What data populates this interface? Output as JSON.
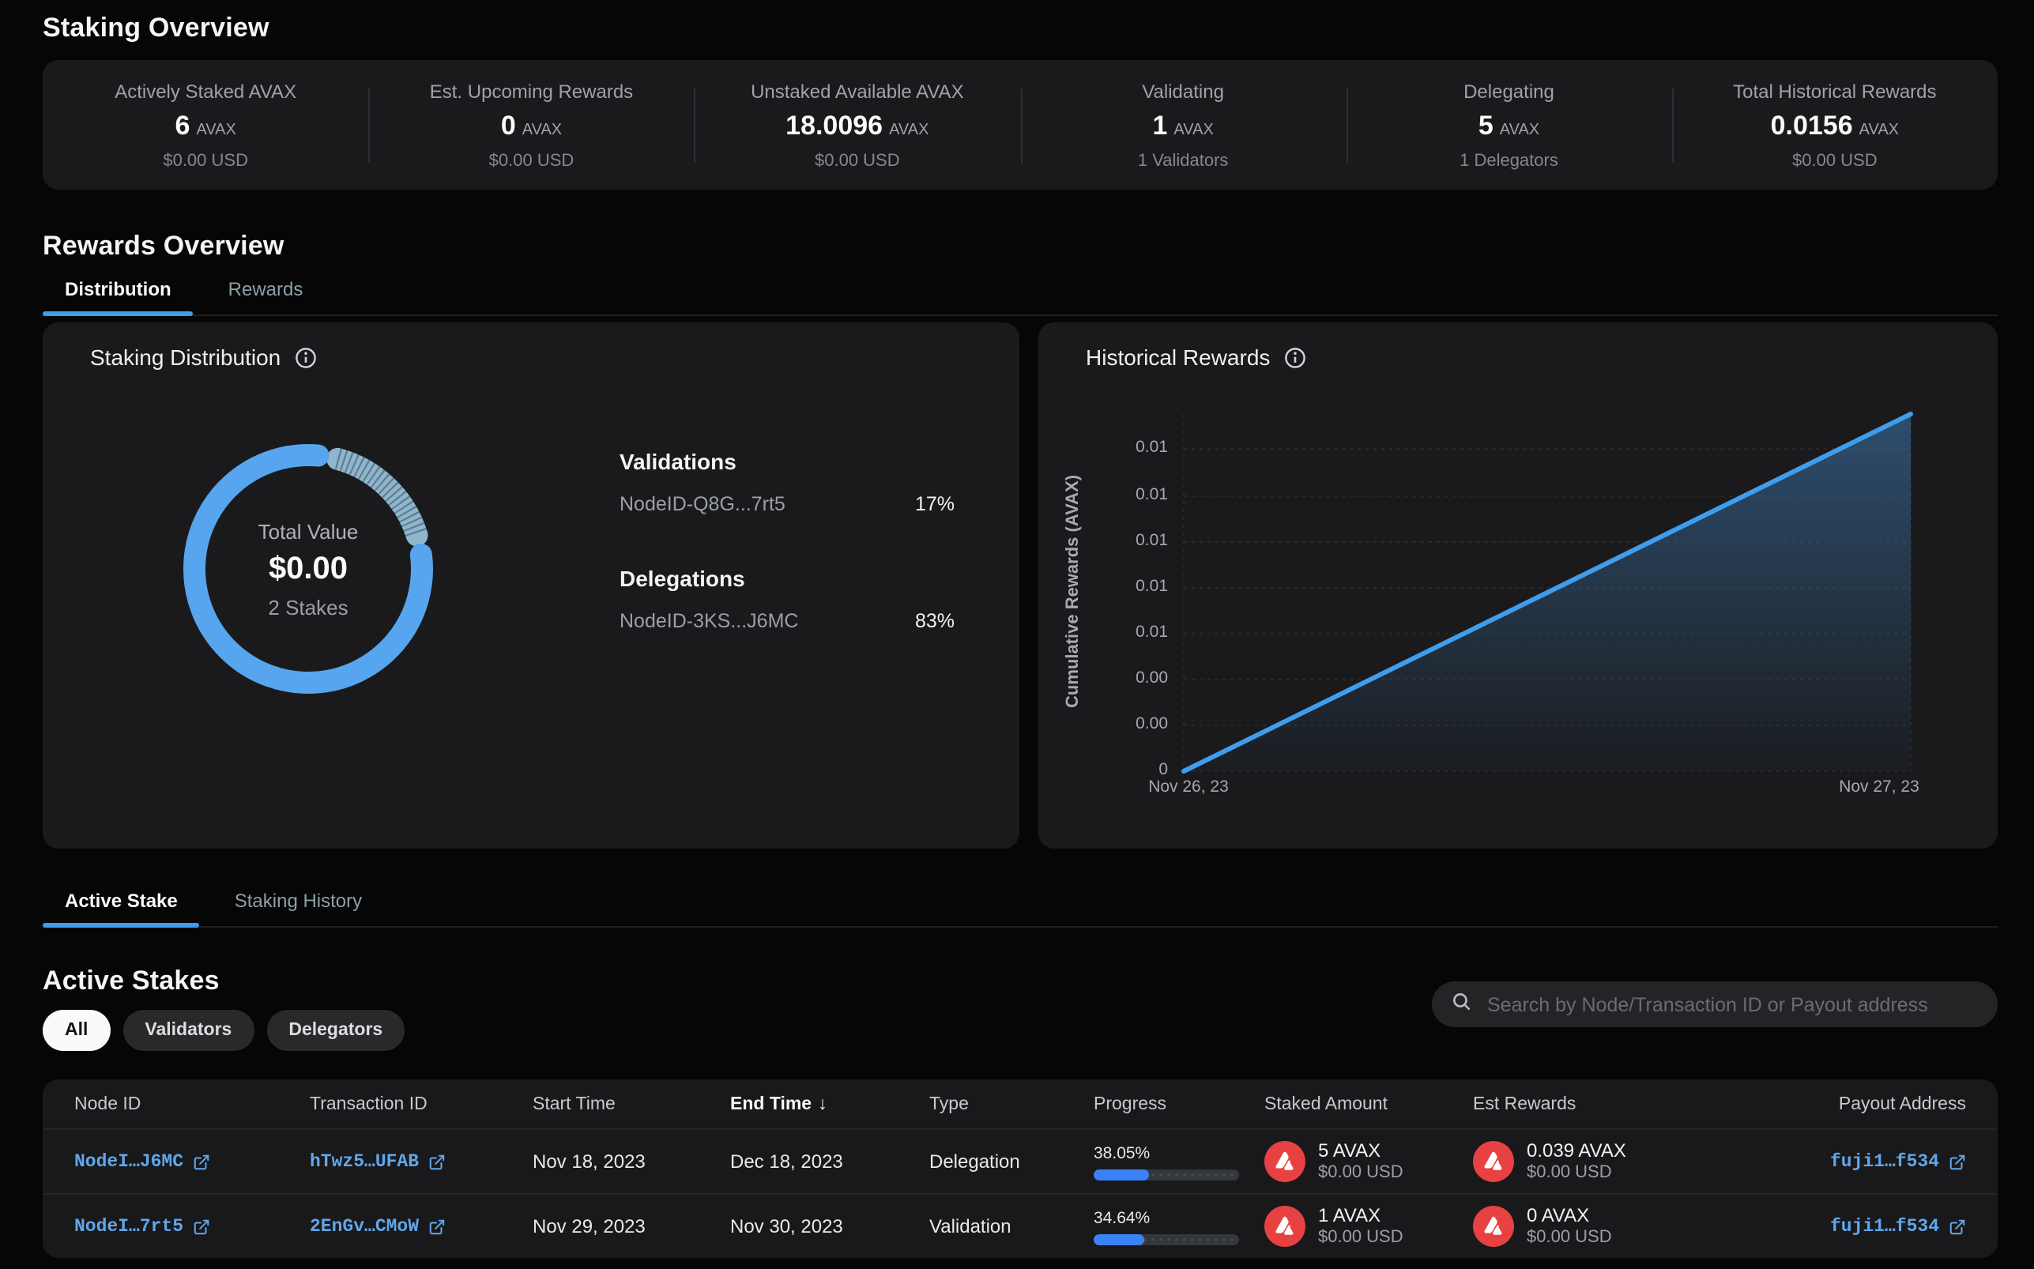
{
  "page_title": "Staking Overview",
  "stats": [
    {
      "label": "Actively Staked AVAX",
      "value": "6",
      "unit": "AVAX",
      "sub": "$0.00 USD"
    },
    {
      "label": "Est. Upcoming Rewards",
      "value": "0",
      "unit": "AVAX",
      "sub": "$0.00 USD"
    },
    {
      "label": "Unstaked Available AVAX",
      "value": "18.0096",
      "unit": "AVAX",
      "sub": "$0.00 USD"
    },
    {
      "label": "Validating",
      "value": "1",
      "unit": "AVAX",
      "sub": "1 Validators"
    },
    {
      "label": "Delegating",
      "value": "5",
      "unit": "AVAX",
      "sub": "1 Delegators"
    },
    {
      "label": "Total Historical Rewards",
      "value": "0.0156",
      "unit": "AVAX",
      "sub": "$0.00 USD"
    }
  ],
  "rewards_overview": {
    "heading": "Rewards Overview",
    "tab_distribution": "Distribution",
    "tab_rewards": "Rewards"
  },
  "distribution": {
    "title": "Staking Distribution",
    "center_label": "Total Value",
    "center_value": "$0.00",
    "center_sub": "2 Stakes",
    "validations_heading": "Validations",
    "validation_node": "NodeID-Q8G...7rt5",
    "validation_pct": "17%",
    "delegations_heading": "Delegations",
    "delegation_node": "NodeID-3KS...J6MC",
    "delegation_pct": "83%"
  },
  "historical": {
    "title": "Historical Rewards",
    "ylabel": "Cumulative Rewards (AVAX)",
    "yticks": [
      "0.01",
      "0.01",
      "0.01",
      "0.01",
      "0.01",
      "0.00",
      "0.00",
      "0"
    ],
    "xtick_left": "Nov 26, 23",
    "xtick_right": "Nov 27, 23"
  },
  "chart_data": [
    {
      "type": "pie",
      "variant": "donut",
      "title": "Staking Distribution",
      "slices": [
        {
          "label": "Validations NodeID-Q8G...7rt5",
          "value": 17,
          "textured": true
        },
        {
          "label": "Delegations NodeID-3KS...J6MC",
          "value": 83,
          "textured": false
        }
      ],
      "colors": [
        "#8fb6cd",
        "#56a5ee"
      ],
      "center_label": "Total Value",
      "center_value": "$0.00",
      "center_sub": "2 Stakes"
    },
    {
      "type": "area",
      "title": "Historical Rewards",
      "xlabel": "",
      "ylabel": "Cumulative Rewards (AVAX)",
      "x": [
        "Nov 26, 23",
        "Nov 27, 23"
      ],
      "series": [
        {
          "name": "Cumulative Rewards",
          "values": [
            0,
            0.0156
          ]
        }
      ],
      "ylim": [
        0,
        0.0156
      ],
      "grid": true,
      "line_color": "#3f9ded"
    }
  ],
  "stake_section": {
    "tab_active": "Active Stake",
    "tab_history": "Staking History",
    "heading": "Active Stakes",
    "filters": [
      "All",
      "Validators",
      "Delegators"
    ],
    "search_placeholder": "Search by Node/Transaction ID or Payout address"
  },
  "table": {
    "columns": [
      "Node ID",
      "Transaction ID",
      "Start Time",
      "End Time",
      "Type",
      "Progress",
      "Staked Amount",
      "Est Rewards",
      "Payout Address"
    ],
    "sort_arrow": "↓",
    "rows": [
      {
        "node_id": "NodeI…J6MC",
        "tx_id": "hTwz5…UFAB",
        "start": "Nov 18, 2023",
        "end": "Dec 18, 2023",
        "type": "Delegation",
        "progress": "38.05%",
        "progress_pct": 38.05,
        "staked": "5 AVAX",
        "staked_usd": "$0.00 USD",
        "est": "0.039 AVAX",
        "est_usd": "$0.00 USD",
        "payout": "fuji1…f534"
      },
      {
        "node_id": "NodeI…7rt5",
        "tx_id": "2EnGv…CMoW",
        "start": "Nov 29, 2023",
        "end": "Nov 30, 2023",
        "type": "Validation",
        "progress": "34.64%",
        "progress_pct": 34.64,
        "staked": "1 AVAX",
        "staked_usd": "$0.00 USD",
        "est": "0 AVAX",
        "est_usd": "$0.00 USD",
        "payout": "fuji1…f534"
      }
    ]
  }
}
